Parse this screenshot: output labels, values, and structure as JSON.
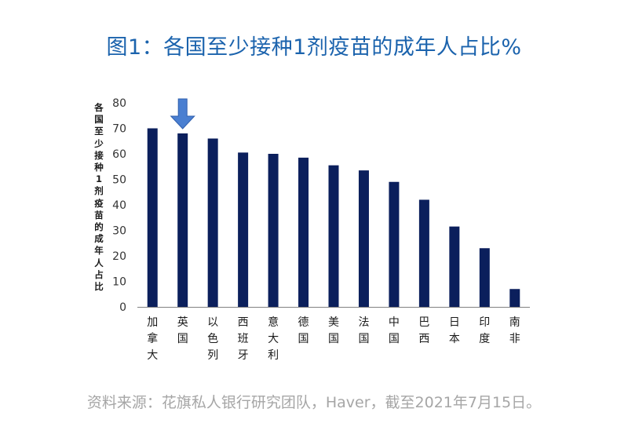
{
  "title": "图1：各国至少接种1剂疫苗的成年人占比%",
  "source": "资料来源：花旗私人银行研究团队，Haver，截至2021年7月15日。",
  "colors": {
    "bar": "#0b1f5c",
    "title": "#1b63ad",
    "arrow": "#4a7fd1"
  },
  "chart_data": {
    "type": "bar",
    "categories": [
      "加拿大",
      "英国",
      "以色列",
      "西班牙",
      "意大利",
      "德国",
      "美国",
      "法国",
      "中国",
      "巴西",
      "日本",
      "印度",
      "南非"
    ],
    "values": [
      70,
      68,
      66,
      60.5,
      60,
      58.5,
      55.5,
      53.5,
      49,
      42,
      31.5,
      23,
      7
    ],
    "ylabel": "各国至少接种1剂疫苗的成年人占比",
    "yticks": [
      "0",
      "10",
      "20",
      "30",
      "40",
      "50",
      "60",
      "70",
      "80"
    ],
    "ylim": [
      0,
      80
    ],
    "highlight": "英国",
    "grid": false
  }
}
